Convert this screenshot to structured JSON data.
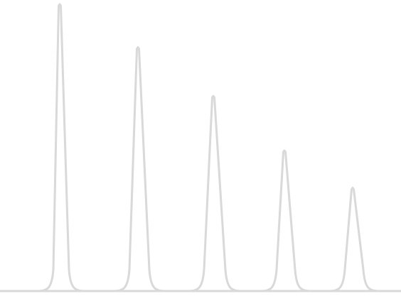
{
  "chart_data": {
    "type": "line",
    "title": "",
    "xlabel": "",
    "ylabel": "",
    "x_range": [
      0,
      564
    ],
    "ylim": [
      0,
      1
    ],
    "grid": false,
    "legend": "none",
    "peaks": [
      {
        "x": 84,
        "height": 1.0,
        "width": 12
      },
      {
        "x": 194,
        "height": 0.85,
        "width": 15
      },
      {
        "x": 300,
        "height": 0.68,
        "width": 16
      },
      {
        "x": 400,
        "height": 0.49,
        "width": 14
      },
      {
        "x": 496,
        "height": 0.36,
        "width": 14
      }
    ],
    "stroke_color": "#d9d9d9"
  }
}
